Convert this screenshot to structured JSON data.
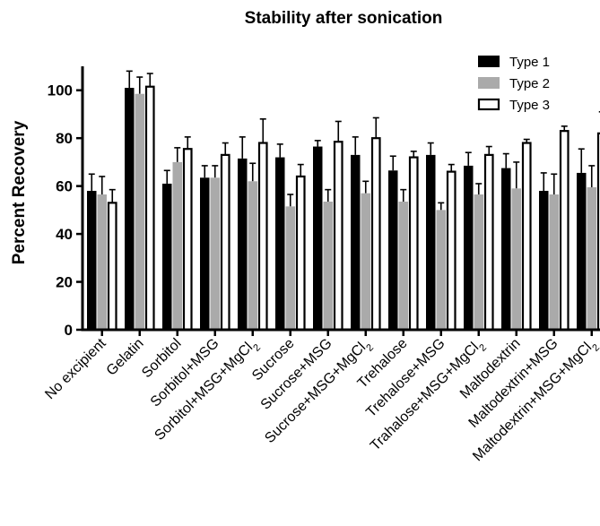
{
  "chart_data": {
    "type": "bar",
    "title": "Stability after sonication",
    "xlabel": "",
    "ylabel": "Percent Recovery",
    "ylim": [
      0,
      110
    ],
    "yticks": [
      0,
      20,
      40,
      60,
      80,
      100
    ],
    "grid": false,
    "legend_position": "top-right",
    "error_bars": true,
    "categories": [
      {
        "text": "No excipient"
      },
      {
        "text": "Gelatin"
      },
      {
        "text": "Sorbitol"
      },
      {
        "text": "Sorbitol+MSG"
      },
      {
        "text": "Sorbitol+MSG+MgCl",
        "sub": "2"
      },
      {
        "text": "Sucrose"
      },
      {
        "text": "Sucrose+MSG"
      },
      {
        "text": "Sucrose+MSG+MgCl",
        "sub": "2"
      },
      {
        "text": "Trehalose"
      },
      {
        "text": "Trehalose+MSG"
      },
      {
        "text": "Trahalose+MSG+MgCl",
        "sub": "2"
      },
      {
        "text": "Maltodextrin"
      },
      {
        "text": "Maltodextrin+MSG"
      },
      {
        "text": "Maltodextrin+MSG+MgCl",
        "sub": "2"
      }
    ],
    "series": [
      {
        "name": "Type 1",
        "color": "#000000",
        "fill": "#000000",
        "values": [
          58,
          101,
          61,
          63.5,
          71.5,
          72,
          76.5,
          73,
          66.5,
          73,
          68.5,
          67.5,
          58,
          65.5
        ],
        "errors": [
          7,
          7,
          5.5,
          5,
          9,
          5.5,
          2.5,
          7.5,
          6,
          5,
          5.5,
          6,
          7.5,
          10
        ]
      },
      {
        "name": "Type 2",
        "color": "#aaaaaa",
        "fill": "#aaaaaa",
        "values": [
          56.5,
          98.5,
          70,
          63.5,
          62,
          51.5,
          53.5,
          57,
          53.5,
          50,
          56.5,
          59,
          56.5,
          59.5
        ],
        "errors": [
          7.5,
          7,
          6,
          5,
          7.5,
          5,
          5,
          5,
          5,
          3,
          4.5,
          11,
          8.5,
          9
        ]
      },
      {
        "name": "Type 3",
        "color": "#000000",
        "fill": "#ffffff",
        "values": [
          53,
          101.5,
          75.5,
          73,
          78,
          64,
          78.5,
          80,
          72,
          66,
          73,
          78,
          83,
          82
        ],
        "errors": [
          5.5,
          5.5,
          5,
          5,
          10,
          5,
          8.5,
          8.5,
          2.5,
          3,
          3.5,
          1.5,
          2,
          9
        ]
      }
    ]
  }
}
